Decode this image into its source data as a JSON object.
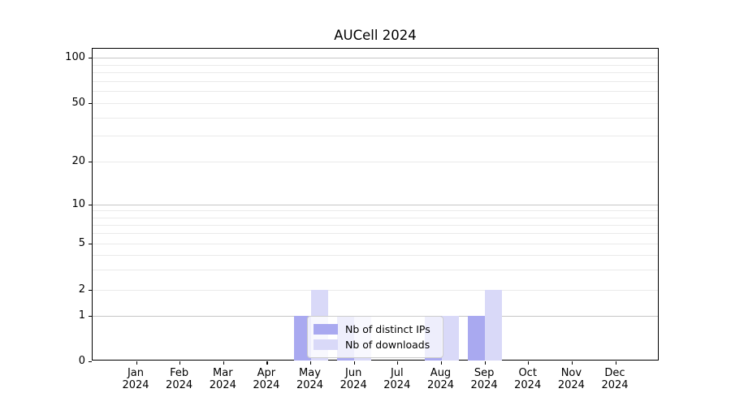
{
  "figure": {
    "title": "AUCell 2024"
  },
  "chart_data": {
    "type": "bar",
    "title": "AUCell 2024",
    "x_categories": [
      "Jan",
      "Feb",
      "Mar",
      "Apr",
      "May",
      "Jun",
      "Jul",
      "Aug",
      "Sep",
      "Oct",
      "Nov",
      "Dec"
    ],
    "x_year": "2024",
    "series": [
      {
        "name": "Nb of distinct IPs",
        "color": "#a9a9f0",
        "values": [
          0,
          0,
          0,
          0,
          1,
          1,
          0,
          1,
          1,
          0,
          0,
          0
        ]
      },
      {
        "name": "Nb of downloads",
        "color": "#d9d9f8",
        "values": [
          0,
          0,
          0,
          0,
          2,
          1,
          0,
          1,
          2,
          0,
          0,
          0
        ]
      }
    ],
    "y_axis": {
      "tick_labels": [
        "0",
        "1",
        "2",
        "5",
        "10",
        "20",
        "50",
        "100"
      ],
      "tick_values": [
        0,
        1,
        2,
        5,
        10,
        20,
        50,
        100
      ],
      "minor_gridline_values": [
        2,
        3,
        4,
        5,
        6,
        7,
        8,
        9,
        20,
        30,
        40,
        50,
        60,
        70,
        80,
        90
      ],
      "major_gridline_values": [
        1,
        10,
        100
      ],
      "scale": "symlog",
      "ylim": [
        0,
        115
      ],
      "grid": true
    },
    "legend": {
      "position": "lower center",
      "items": [
        "Nb of distinct IPs",
        "Nb of downloads"
      ]
    }
  },
  "colors": {
    "major_grid": "#c6c6c6",
    "minor_grid": "#eaeaea",
    "axis": "#000000",
    "legend_border": "#cccccc"
  }
}
